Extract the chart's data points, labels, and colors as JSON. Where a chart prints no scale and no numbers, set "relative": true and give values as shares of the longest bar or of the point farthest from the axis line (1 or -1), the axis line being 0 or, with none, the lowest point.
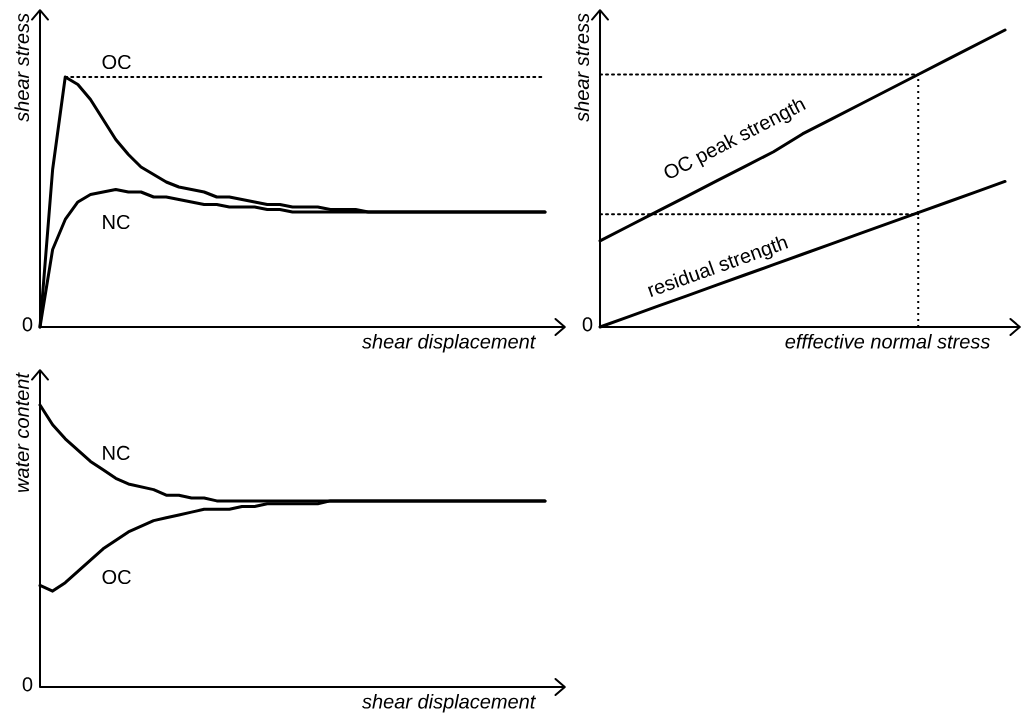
{
  "chart_data": [
    {
      "type": "line",
      "relative": true,
      "xlabel": "shear displacement",
      "ylabel": "shear stress",
      "annotations": [
        "0"
      ],
      "categories": [
        null,
        null,
        null,
        null,
        null,
        null,
        null,
        null,
        null,
        null,
        null,
        null,
        null,
        null,
        null,
        null,
        null,
        null,
        null,
        null,
        null,
        null,
        null,
        null,
        null,
        null,
        null,
        null,
        null,
        null,
        null,
        null,
        null,
        null,
        null,
        null,
        null,
        null,
        null,
        null,
        null
      ],
      "series": [
        {
          "name": "OC",
          "color": "#000000",
          "values": [
            0,
            0.63,
            1,
            0.97,
            0.91,
            0.83,
            0.75,
            0.69,
            0.64,
            0.61,
            0.58,
            0.56,
            0.55,
            0.54,
            0.52,
            0.52,
            0.51,
            0.5,
            0.49,
            0.49,
            0.48,
            0.48,
            0.48,
            0.47,
            0.47,
            0.47,
            0.46,
            0.46,
            0.46,
            0.46,
            0.46,
            0.46,
            0.46,
            0.46,
            0.46,
            0.46,
            0.46,
            0.46,
            0.46,
            0.46,
            0.46
          ]
        },
        {
          "name": "NC",
          "color": "#000000",
          "values": [
            0,
            0.31,
            0.43,
            0.5,
            0.53,
            0.54,
            0.55,
            0.54,
            0.54,
            0.52,
            0.52,
            0.51,
            0.5,
            0.49,
            0.49,
            0.48,
            0.48,
            0.48,
            0.47,
            0.47,
            0.46,
            0.46,
            0.46,
            0.46,
            0.46,
            0.46,
            0.46,
            0.46,
            0.46,
            0.46,
            0.46,
            0.46,
            0.46,
            0.46,
            0.46,
            0.46,
            0.46,
            0.46,
            0.46,
            0.46,
            0.46
          ]
        },
        {
          "color": "#000000",
          "line_style": "dotted",
          "values": [
            null,
            null,
            1,
            1,
            1,
            1,
            1,
            1,
            1,
            1,
            1,
            1,
            1,
            1,
            1,
            1,
            1,
            1,
            1,
            1,
            1,
            1,
            1,
            1,
            1,
            1,
            1,
            1,
            1,
            1,
            1,
            1,
            1,
            1,
            1,
            1,
            1,
            1,
            1,
            1,
            1
          ]
        }
      ]
    },
    {
      "type": "line",
      "relative": true,
      "xlabel": "efffective normal stress",
      "ylabel": "shear stress",
      "annotations": [
        "0"
      ],
      "categories": [
        null,
        null,
        null,
        null,
        null,
        null,
        null,
        null,
        null,
        null,
        null,
        null,
        null,
        null,
        null
      ],
      "series": [
        {
          "name": "OC peak strength",
          "color": "#000000",
          "values": [
            0.29,
            0.34,
            0.39,
            0.44,
            0.49,
            0.54,
            0.59,
            0.65,
            0.7,
            0.75,
            0.8,
            0.85,
            0.9,
            0.95,
            1
          ]
        },
        {
          "name": "residual strength",
          "color": "#000000",
          "values": [
            0,
            0.035,
            0.07,
            0.105,
            0.14,
            0.175,
            0.21,
            0.245,
            0.28,
            0.315,
            0.35,
            0.385,
            0.42,
            0.455,
            0.49
          ]
        },
        {
          "color": "#000000",
          "line_style": "dotted",
          "values": [
            0.85,
            0.85,
            0.85,
            0.85,
            0.85,
            0.85,
            0.85,
            0.85,
            0.85,
            0.85,
            0.85,
            0.85,
            null,
            null,
            null
          ]
        },
        {
          "color": "#000000",
          "line_style": "dotted",
          "values": [
            0.38,
            0.38,
            0.38,
            0.38,
            0.38,
            0.38,
            0.38,
            0.38,
            0.38,
            0.38,
            0.38,
            0.38,
            null,
            null,
            null
          ]
        }
      ]
    },
    {
      "type": "line",
      "relative": true,
      "xlabel": "shear displacement",
      "ylabel": "water content",
      "annotations": [
        "0"
      ],
      "categories": [
        null,
        null,
        null,
        null,
        null,
        null,
        null,
        null,
        null,
        null,
        null,
        null,
        null,
        null,
        null,
        null,
        null,
        null,
        null,
        null,
        null,
        null,
        null,
        null,
        null,
        null,
        null,
        null,
        null,
        null,
        null,
        null,
        null,
        null,
        null,
        null,
        null,
        null,
        null,
        null,
        null
      ],
      "series": [
        {
          "name": "NC",
          "color": "#000000",
          "values": [
            1,
            0.93,
            0.88,
            0.84,
            0.8,
            0.77,
            0.74,
            0.72,
            0.71,
            0.7,
            0.68,
            0.68,
            0.67,
            0.67,
            0.66,
            0.66,
            0.66,
            0.66,
            0.66,
            0.66,
            0.66,
            0.66,
            0.66,
            0.66,
            0.66,
            0.66,
            0.66,
            0.66,
            0.66,
            0.66,
            0.66,
            0.66,
            0.66,
            0.66,
            0.66,
            0.66,
            0.66,
            0.66,
            0.66,
            0.66,
            0.66
          ]
        },
        {
          "name": "OC",
          "color": "#000000",
          "values": [
            0.36,
            0.34,
            0.37,
            0.41,
            0.45,
            0.49,
            0.52,
            0.55,
            0.57,
            0.59,
            0.6,
            0.61,
            0.62,
            0.63,
            0.63,
            0.63,
            0.64,
            0.64,
            0.65,
            0.65,
            0.65,
            0.65,
            0.65,
            0.66,
            0.66,
            0.66,
            0.66,
            0.66,
            0.66,
            0.66,
            0.66,
            0.66,
            0.66,
            0.66,
            0.66,
            0.66,
            0.66,
            0.66,
            0.66,
            0.66,
            0.66
          ]
        }
      ]
    }
  ]
}
